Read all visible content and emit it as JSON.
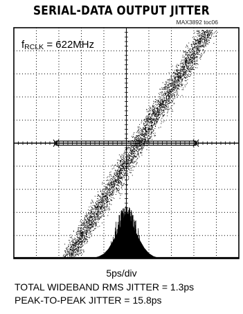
{
  "chart_data": {
    "type": "scatter",
    "title": "SERIAL-DATA OUTPUT JITTER",
    "figure_code": "MAX3892 toc06",
    "annotation": {
      "prefix": "f",
      "subscript": "RCLK",
      "value": " = 622MHz"
    },
    "x_scale_label": "5ps/div",
    "measurements": [
      "TOTAL WIDEBAND RMS JITTER = 1.3ps",
      "PEAK-TO-PEAK JITTER = 15.8ps"
    ],
    "grid": {
      "divisions_x": 10,
      "divisions_y": 10,
      "style": "dotted"
    },
    "histogram": {
      "bin_centers_div": [
        -1.4,
        -1.2,
        -1.0,
        -0.8,
        -0.6,
        -0.4,
        -0.2,
        0.0,
        0.2,
        0.4,
        0.6,
        0.8,
        1.0,
        1.2,
        1.4
      ],
      "relative_counts": [
        0.02,
        0.05,
        0.1,
        0.2,
        0.36,
        0.52,
        0.74,
        1.0,
        0.78,
        0.55,
        0.38,
        0.22,
        0.11,
        0.05,
        0.02
      ]
    },
    "rms_jitter_ps": 1.3,
    "peak_to_peak_jitter_ps": 15.8
  }
}
